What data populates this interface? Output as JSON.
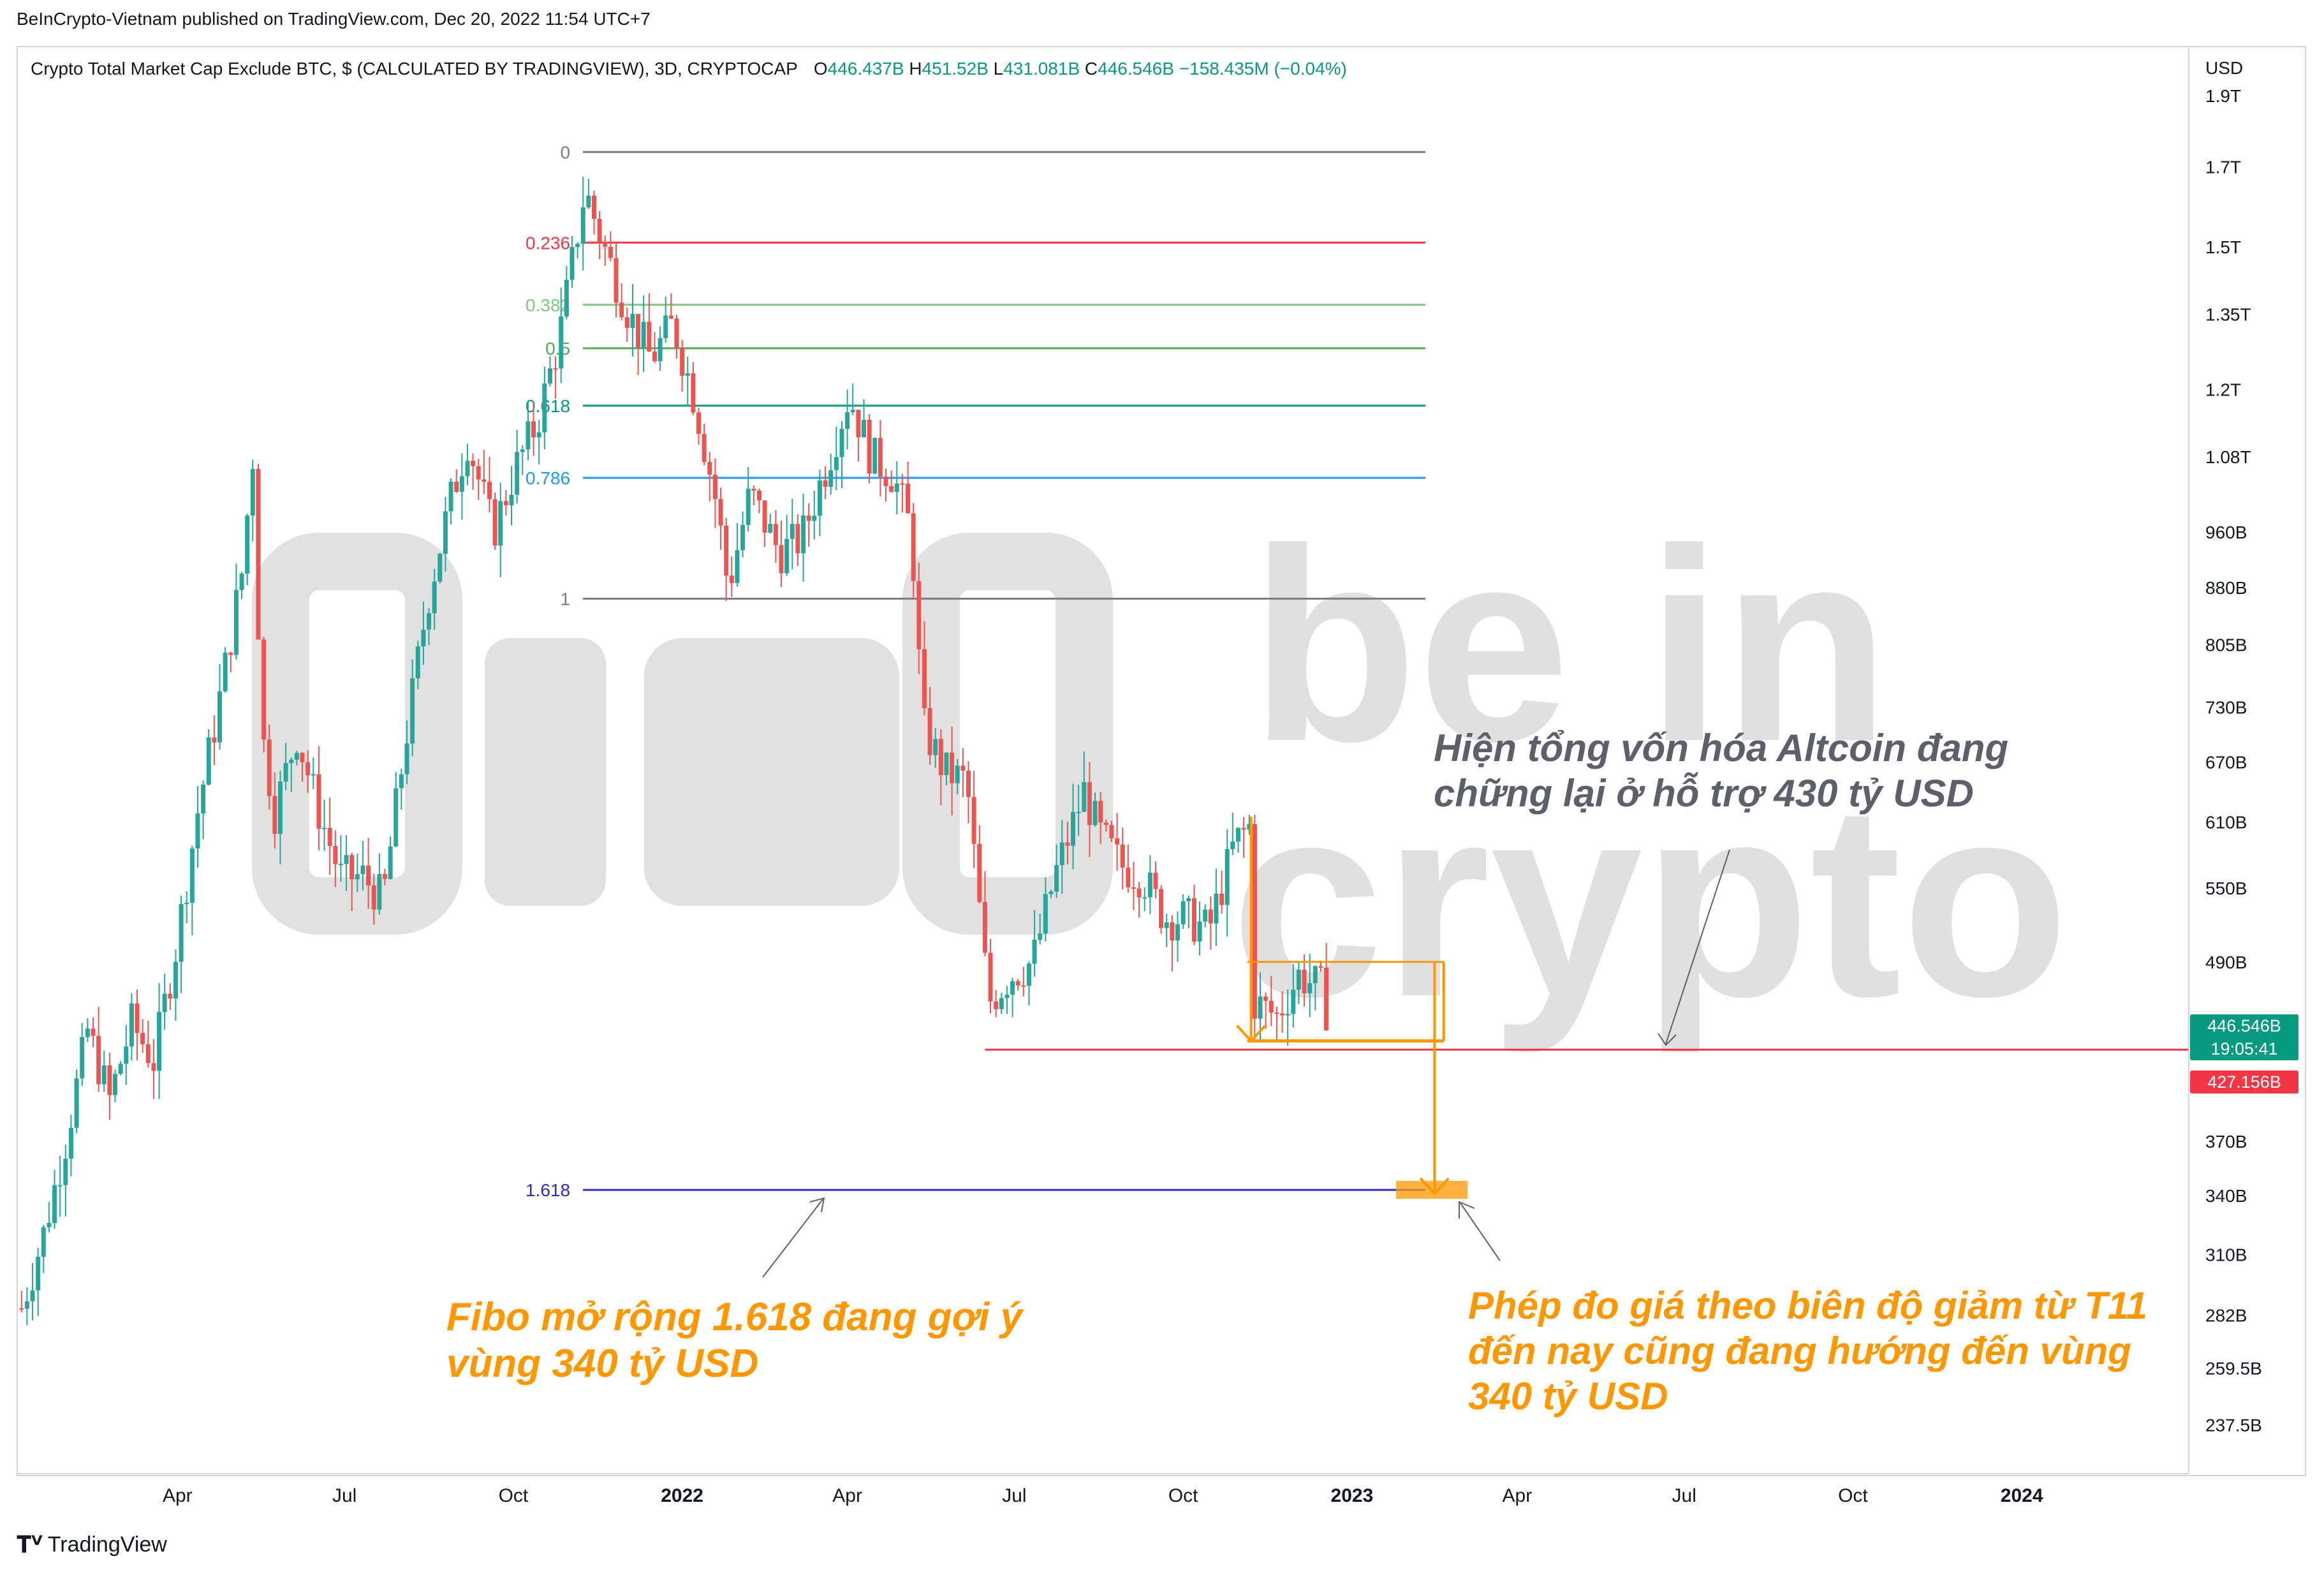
{
  "header": {
    "publisher": "BeInCrypto-Vietnam published on TradingView.com, Dec 20, 2022 11:54 UTC+7"
  },
  "legend": {
    "symbol": "Crypto Total Market Cap Exclude BTC, $ (CALCULATED BY TRADINGVIEW), 3D, CRYPTOCAP",
    "o_label": "O",
    "o_value": "446.437B",
    "h_label": "H",
    "h_value": "451.52B",
    "l_label": "L",
    "l_value": "431.081B",
    "c_label": "C",
    "c_value": "446.546B",
    "change": "−158.435M (−0.04%)"
  },
  "footer": {
    "brand": "TradingView"
  },
  "watermark": {
    "line1": "be in",
    "line2": "crypto"
  },
  "annotations": {
    "top": "Hiện tổng vốn hóa Altcoin đang chững lại ở hỗ trợ 430 tỷ USD",
    "fibo": "Fibo mở rộng 1.618 đang gợi ý vùng 340 tỷ USD",
    "measure": "Phép đo giá theo biên độ giảm từ T11 đến nay cũng đang hướng đến vùng 340 tỷ USD"
  },
  "price_tags": {
    "last_price": "446.546B",
    "countdown": "19:05:41",
    "support": "427.156B"
  },
  "colors": {
    "up": "#26a69a",
    "down": "#ef5350",
    "support_line": "#f23645",
    "measure": "#ff9800",
    "watermark": "#d9d9d9"
  },
  "chart_data": {
    "type": "candlestick",
    "y_axis": {
      "unit_label": "USD",
      "scale": "log",
      "ticks": [
        "1.9T",
        "1.7T",
        "1.5T",
        "1.35T",
        "1.2T",
        "1.08T",
        "960B",
        "880B",
        "805B",
        "730B",
        "670B",
        "610B",
        "550B",
        "490B",
        "370B",
        "340B",
        "310B",
        "282B",
        "259.5B",
        "237.5B"
      ],
      "tick_values": [
        1900,
        1700,
        1500,
        1350,
        1200,
        1080,
        960,
        880,
        805,
        730,
        670,
        610,
        550,
        490,
        370,
        340,
        310,
        282,
        259.5,
        237.5
      ],
      "range": [
        220,
        2050
      ]
    },
    "x_axis": {
      "ticks": [
        "Apr",
        "Jul",
        "Oct",
        "2022",
        "Apr",
        "Jul",
        "Oct",
        "2023",
        "Apr",
        "Jul",
        "Oct",
        "2024"
      ],
      "tick_dates": [
        "2021-04-01",
        "2021-07-01",
        "2021-10-01",
        "2022-01-01",
        "2022-04-01",
        "2022-07-01",
        "2022-10-01",
        "2023-01-01",
        "2023-04-01",
        "2023-07-01",
        "2023-10-01",
        "2024-01-01"
      ],
      "bold": [
        "2022",
        "2023",
        "2024"
      ],
      "range": [
        "2021-01-04",
        "2024-04-01"
      ]
    },
    "fibonacci": {
      "start": "2021-11-01",
      "end": "2023-02-10",
      "levels": [
        {
          "ratio": "0",
          "value": 1740,
          "color": "#787b86"
        },
        {
          "ratio": "0.236",
          "value": 1510,
          "color": "#f23645"
        },
        {
          "ratio": "0.382",
          "value": 1370,
          "color": "#81c784"
        },
        {
          "ratio": "0.5",
          "value": 1280,
          "color": "#4caf50"
        },
        {
          "ratio": "0.618",
          "value": 1170,
          "color": "#089981"
        },
        {
          "ratio": "0.786",
          "value": 1045,
          "color": "#2196f3"
        },
        {
          "ratio": "1",
          "value": 865,
          "color": "#787b86"
        },
        {
          "ratio": "1.618",
          "value": 343,
          "color": "#2a2ebd"
        }
      ]
    },
    "support": {
      "value": 427.156,
      "from": "2022-06-15"
    },
    "last_price": 446.546,
    "measured_move": {
      "first_leg": {
        "date": "2022-11-07",
        "from": 615,
        "to": 433
      },
      "box_top": 490,
      "box_from": "2022-11-05",
      "box_to": "2023-02-20",
      "second_leg": {
        "date": "2023-02-15",
        "from": 490,
        "to": 341
      },
      "target_zone": {
        "value": 343,
        "from": "2023-01-25",
        "to": "2023-03-05"
      }
    },
    "series": [
      {
        "name": "",
        "points": [
          [
            "2021-01-06",
            285
          ],
          [
            "2021-01-18",
            320
          ],
          [
            "2021-01-30",
            370
          ],
          [
            "2021-02-11",
            440
          ],
          [
            "2021-02-23",
            395
          ],
          [
            "2021-03-07",
            445
          ],
          [
            "2021-03-19",
            420
          ],
          [
            "2021-03-31",
            500
          ],
          [
            "2021-04-12",
            620
          ],
          [
            "2021-04-24",
            740
          ],
          [
            "2021-05-06",
            900
          ],
          [
            "2021-05-12",
            1080
          ],
          [
            "2021-05-17",
            700
          ],
          [
            "2021-05-24",
            620
          ],
          [
            "2021-06-05",
            700
          ],
          [
            "2021-06-17",
            620
          ],
          [
            "2021-06-29",
            560
          ],
          [
            "2021-07-11",
            560
          ],
          [
            "2021-07-22",
            540
          ],
          [
            "2021-08-03",
            690
          ],
          [
            "2021-08-15",
            860
          ],
          [
            "2021-08-27",
            1000
          ],
          [
            "2021-09-06",
            1110
          ],
          [
            "2021-09-20",
            960
          ],
          [
            "2021-10-02",
            1060
          ],
          [
            "2021-10-14",
            1140
          ],
          [
            "2021-10-26",
            1300
          ],
          [
            "2021-11-09",
            1640
          ],
          [
            "2021-11-21",
            1480
          ],
          [
            "2021-12-03",
            1350
          ],
          [
            "2021-12-15",
            1260
          ],
          [
            "2021-12-27",
            1330
          ],
          [
            "2022-01-08",
            1180
          ],
          [
            "2022-01-20",
            1000
          ],
          [
            "2022-01-26",
            880
          ],
          [
            "2022-02-07",
            1020
          ],
          [
            "2022-02-23",
            930
          ],
          [
            "2022-03-07",
            950
          ],
          [
            "2022-03-21",
            1070
          ],
          [
            "2022-04-02",
            1190
          ],
          [
            "2022-04-14",
            1080
          ],
          [
            "2022-04-26",
            1050
          ],
          [
            "2022-05-06",
            960
          ],
          [
            "2022-05-12",
            710
          ],
          [
            "2022-05-24",
            660
          ],
          [
            "2022-06-05",
            650
          ],
          [
            "2022-06-17",
            460
          ],
          [
            "2022-06-29",
            480
          ],
          [
            "2022-07-11",
            490
          ],
          [
            "2022-07-23",
            560
          ],
          [
            "2022-08-08",
            640
          ],
          [
            "2022-08-16",
            600
          ],
          [
            "2022-08-28",
            570
          ],
          [
            "2022-09-09",
            560
          ],
          [
            "2022-09-21",
            525
          ],
          [
            "2022-10-03",
            525
          ],
          [
            "2022-10-15",
            515
          ],
          [
            "2022-10-29",
            590
          ],
          [
            "2022-11-06",
            605
          ],
          [
            "2022-11-09",
            460
          ],
          [
            "2022-11-21",
            450
          ],
          [
            "2022-12-03",
            480
          ],
          [
            "2022-12-15",
            470
          ],
          [
            "2022-12-20",
            446.5
          ]
        ]
      }
    ]
  }
}
